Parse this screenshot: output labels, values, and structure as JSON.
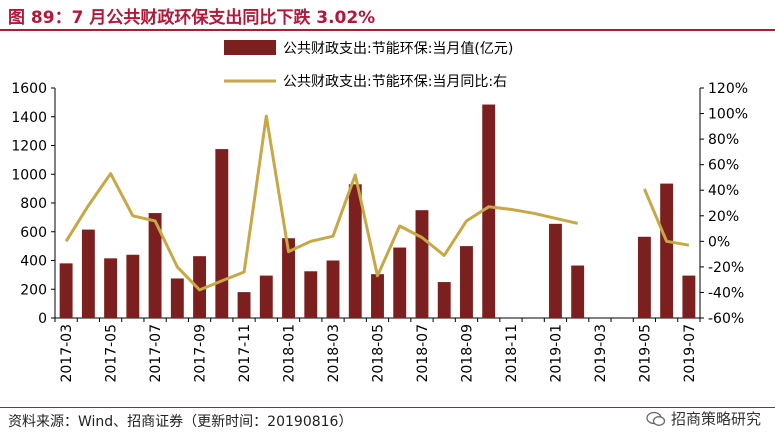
{
  "header": {
    "title": "图 89：7 月公共财政环保支出同比下跌 3.02%"
  },
  "footer": {
    "source": "资料来源：Wind、招商证券（更新时间：20190816）",
    "watermark": "招商策略研究"
  },
  "colors": {
    "accent": "#b2183a",
    "bar": "#7b1f1f",
    "line": "#c8a746"
  },
  "chart_data": {
    "type": "bar",
    "categories": [
      "2017-03",
      "2017-04",
      "2017-05",
      "2017-06",
      "2017-07",
      "2017-08",
      "2017-09",
      "2017-10",
      "2017-11",
      "2017-12",
      "2018-01",
      "2018-02",
      "2018-03",
      "2018-04",
      "2018-05",
      "2018-06",
      "2018-07",
      "2018-08",
      "2018-09",
      "2018-10",
      "2018-11",
      "2018-12",
      "2019-01",
      "2019-02",
      "2019-03",
      "2019-04",
      "2019-05",
      "2019-06",
      "2019-07"
    ],
    "x_tick_labels": [
      "2017-03",
      "2017-05",
      "2017-07",
      "2017-09",
      "2017-11",
      "2018-01",
      "2018-03",
      "2018-05",
      "2018-07",
      "2018-09",
      "2018-11",
      "2019-01",
      "2019-03",
      "2019-05",
      "2019-07"
    ],
    "series": [
      {
        "name": "公共财政支出:节能环保:当月值(亿元)",
        "type": "bar",
        "axis": "left",
        "values": [
          380,
          615,
          415,
          440,
          730,
          275,
          430,
          1175,
          180,
          295,
          555,
          325,
          400,
          930,
          305,
          490,
          750,
          250,
          500,
          1485,
          null,
          null,
          655,
          365,
          null,
          null,
          565,
          935,
          295
        ]
      },
      {
        "name": "公共财政支出:节能环保:当月同比:右",
        "type": "line",
        "axis": "right",
        "values": [
          0,
          28,
          53,
          20,
          16,
          -20,
          -38,
          -31,
          -24,
          98,
          -8,
          0,
          4,
          52,
          -27,
          12,
          3,
          -11,
          16,
          27,
          25,
          22,
          18,
          14,
          null,
          null,
          41,
          0,
          -3
        ]
      }
    ],
    "y_left": {
      "ylim": [
        0,
        1600
      ],
      "ticks": [
        0,
        200,
        400,
        600,
        800,
        1000,
        1200,
        1400,
        1600
      ]
    },
    "y_right": {
      "ylim": [
        -60,
        120
      ],
      "ticks": [
        "-60%",
        "-40%",
        "-20%",
        "0%",
        "20%",
        "40%",
        "60%",
        "80%",
        "100%",
        "120%"
      ]
    },
    "legend_position": "top-center",
    "grid": false
  }
}
